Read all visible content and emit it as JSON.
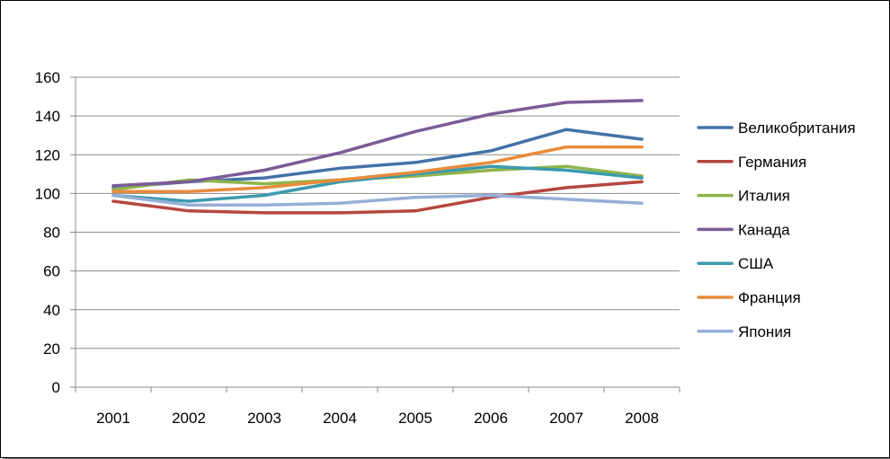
{
  "chart_data": {
    "type": "line",
    "categories": [
      "2001",
      "2002",
      "2003",
      "2004",
      "2005",
      "2006",
      "2007",
      "2008"
    ],
    "ylim": [
      0,
      160
    ],
    "yticks": [
      0,
      20,
      40,
      60,
      80,
      100,
      120,
      140,
      160
    ],
    "grid": true,
    "legend_position": "right",
    "series": [
      {
        "name": "Великобритания",
        "color": "#4472A8",
        "values": [
          103,
          106,
          108,
          113,
          116,
          122,
          133,
          128
        ]
      },
      {
        "name": "Германия",
        "color": "#B5473F",
        "values": [
          96,
          91,
          90,
          90,
          91,
          98,
          103,
          106
        ]
      },
      {
        "name": "Италия",
        "color": "#8FB44B",
        "values": [
          102,
          107,
          105,
          107,
          109,
          112,
          114,
          109
        ]
      },
      {
        "name": "Канада",
        "color": "#7A5C98",
        "values": [
          104,
          106,
          112,
          121,
          132,
          141,
          147,
          148
        ]
      },
      {
        "name": "США",
        "color": "#3C9AAE",
        "values": [
          99,
          96,
          99,
          106,
          110,
          114,
          112,
          108
        ]
      },
      {
        "name": "Франция",
        "color": "#E88B3C",
        "values": [
          101,
          101,
          103,
          107,
          111,
          116,
          124,
          124
        ]
      },
      {
        "name": "Япония",
        "color": "#96AED6",
        "values": [
          99,
          94,
          94,
          95,
          98,
          99,
          97,
          95
        ]
      }
    ]
  }
}
